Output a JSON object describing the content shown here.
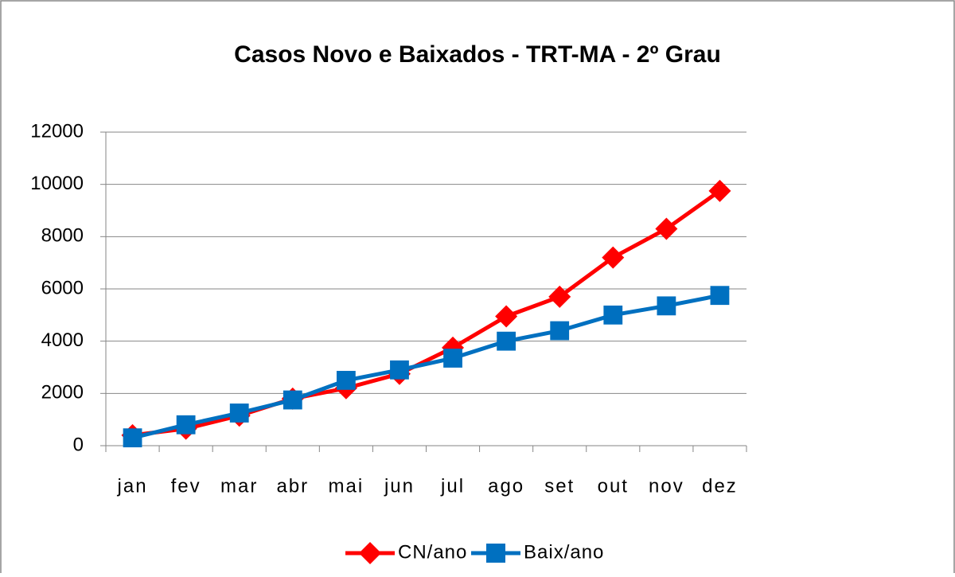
{
  "chart_data": {
    "type": "line",
    "title": "Casos Novo e Baixados - TRT-MA - 2º Grau",
    "categories": [
      "jan",
      "fev",
      "mar",
      "abr",
      "mai",
      "jun",
      "jul",
      "ago",
      "set",
      "out",
      "nov",
      "dez"
    ],
    "series": [
      {
        "name": "CN/ano",
        "color": "#ff0000",
        "marker": "diamond",
        "values": [
          400,
          650,
          1150,
          1800,
          2200,
          2750,
          3750,
          4950,
          5700,
          7200,
          8300,
          9750
        ]
      },
      {
        "name": "Baix/ano",
        "color": "#0070c0",
        "marker": "square",
        "values": [
          300,
          800,
          1250,
          1750,
          2500,
          2900,
          3350,
          4000,
          4400,
          5000,
          5350,
          5750
        ]
      }
    ],
    "ylim": [
      0,
      12000
    ],
    "yticks": [
      0,
      2000,
      4000,
      6000,
      8000,
      10000,
      12000
    ],
    "grid": true,
    "legend": "bottom"
  }
}
